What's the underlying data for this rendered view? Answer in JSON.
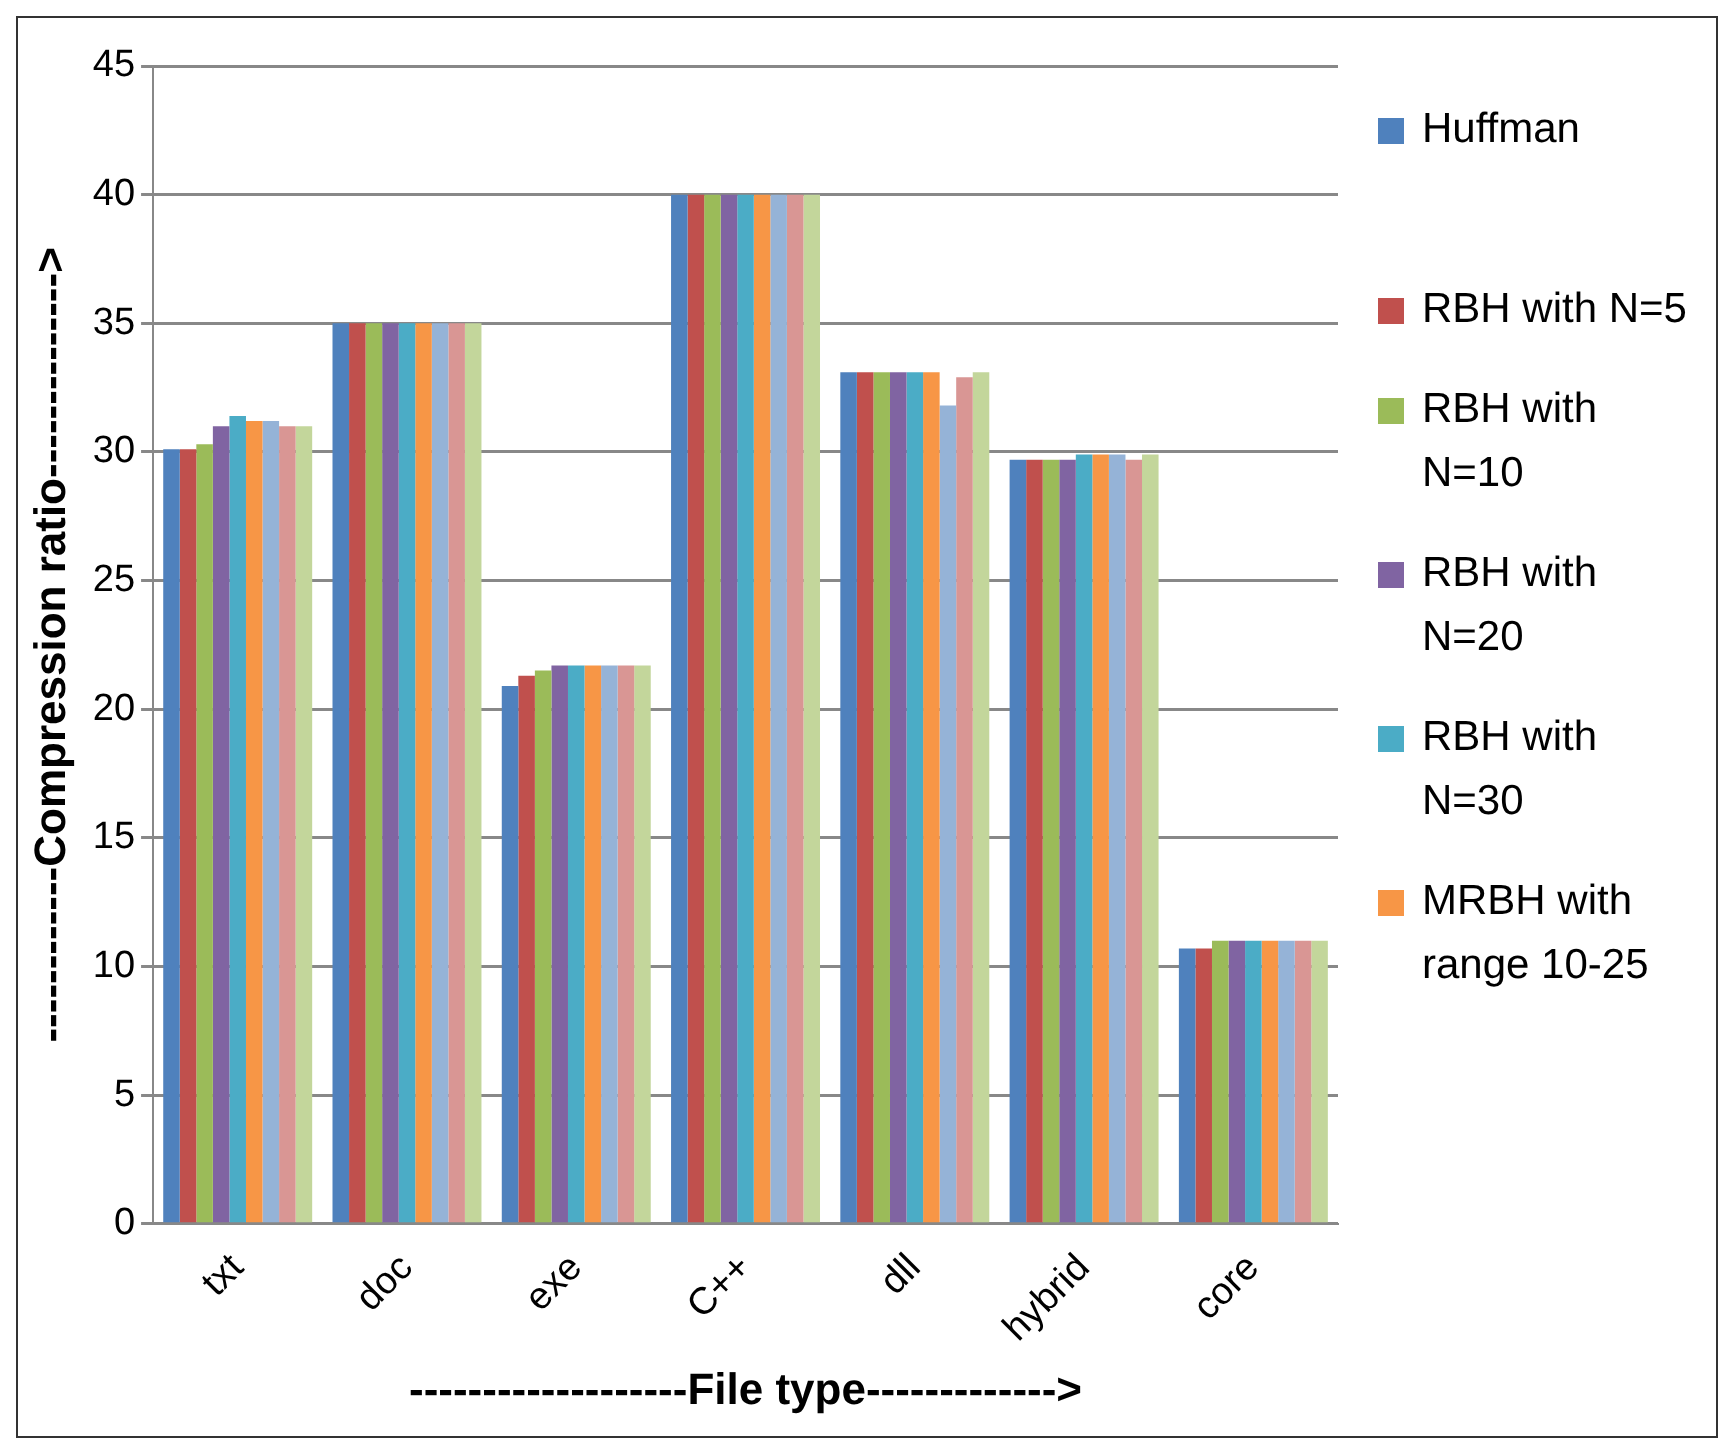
{
  "chart_data": {
    "type": "bar",
    "xlabel": "-------------------File type------------->",
    "ylabel": "------------Compression ratio-------------->",
    "categories": [
      "txt",
      "doc",
      "exe",
      "C++",
      "dll",
      "hybrid",
      "core"
    ],
    "ylim": [
      0,
      45
    ],
    "yticks": [
      0,
      5,
      10,
      15,
      20,
      25,
      30,
      35,
      40,
      45
    ],
    "grid": "y",
    "legend": "right",
    "series": [
      {
        "name": "Huffman",
        "color": "#4f81bd",
        "values": [
          30.1,
          35,
          20.9,
          40,
          33.1,
          29.7,
          10.7
        ]
      },
      {
        "name": "RBH with N=5",
        "color": "#c0504d",
        "values": [
          30.1,
          35,
          21.3,
          40,
          33.1,
          29.7,
          10.7
        ]
      },
      {
        "name": "RBH with N=10",
        "color": "#9bbb59",
        "values": [
          30.3,
          35,
          21.5,
          40,
          33.1,
          29.7,
          11.0
        ]
      },
      {
        "name": "RBH with N=20",
        "color": "#8064a2",
        "values": [
          31.0,
          35,
          21.7,
          40,
          33.1,
          29.7,
          11.0
        ]
      },
      {
        "name": "RBH with N=30",
        "color": "#4bacc6",
        "values": [
          31.4,
          35,
          21.7,
          40,
          33.1,
          29.9,
          11.0
        ]
      },
      {
        "name": "MRBH with range 10-25",
        "color": "#f79646",
        "values": [
          31.2,
          35,
          21.7,
          40,
          33.1,
          29.9,
          11.0
        ]
      },
      {
        "color": "#95b3d7",
        "values": [
          31.2,
          35,
          21.7,
          40,
          31.8,
          29.9,
          11.0
        ]
      },
      {
        "color": "#d99694",
        "values": [
          31.0,
          35,
          21.7,
          40,
          32.9,
          29.7,
          11.0
        ]
      },
      {
        "color": "#c3d69b",
        "values": [
          31.0,
          35,
          21.7,
          40,
          33.1,
          29.9,
          11.0
        ]
      }
    ]
  }
}
